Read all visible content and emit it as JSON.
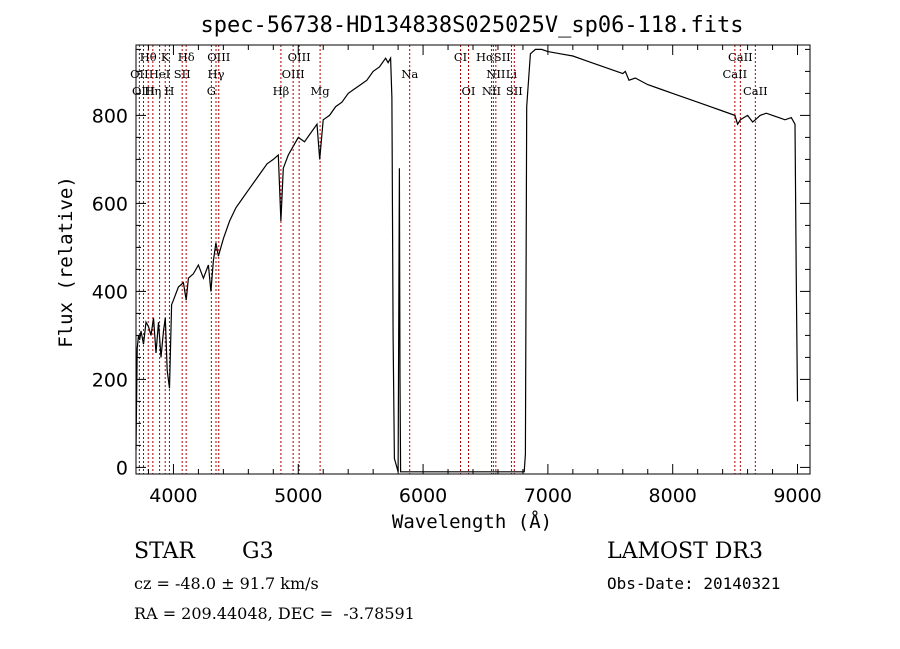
{
  "chart_data": {
    "type": "line",
    "title": "spec-56738-HD134838S025025V_sp06-118.fits",
    "xlabel": "Wavelength (Å)",
    "ylabel": "Flux (relative)",
    "xlim": [
      3700,
      9100
    ],
    "ylim": [
      -15,
      960
    ],
    "xticks": [
      4000,
      5000,
      6000,
      7000,
      8000,
      9000
    ],
    "yticks": [
      0,
      200,
      400,
      600,
      800
    ],
    "series": [
      {
        "x": [
          3700,
          3710,
          3720,
          3730,
          3740,
          3760,
          3780,
          3800,
          3820,
          3840,
          3860,
          3880,
          3900,
          3920,
          3935,
          3950,
          3968,
          3985,
          4000,
          4040,
          4080,
          4102,
          4120,
          4160,
          4200,
          4240,
          4280,
          4300,
          4320,
          4340,
          4360,
          4400,
          4450,
          4500,
          4550,
          4600,
          4650,
          4700,
          4750,
          4800,
          4840,
          4861,
          4880,
          4920,
          4960,
          5000,
          5050,
          5100,
          5150,
          5172,
          5200,
          5250,
          5300,
          5350,
          5400,
          5450,
          5500,
          5550,
          5600,
          5650,
          5700,
          5720,
          5740,
          5750,
          5760,
          5770,
          5790,
          5800,
          5810,
          5815,
          5820,
          5830,
          5840,
          5860,
          6000,
          6200,
          6400,
          6600,
          6700,
          6780,
          6800,
          6810,
          6820,
          6830,
          6860,
          6900,
          6950,
          7000,
          7100,
          7200,
          7300,
          7400,
          7500,
          7600,
          7620,
          7650,
          7700,
          7800,
          7900,
          8000,
          8100,
          8200,
          8300,
          8400,
          8498,
          8520,
          8542,
          8570,
          8600,
          8640,
          8662,
          8700,
          8750,
          8800,
          8850,
          8900,
          8950,
          8980,
          8990,
          9000
        ],
        "y": [
          40,
          270,
          300,
          290,
          310,
          280,
          330,
          320,
          300,
          340,
          260,
          330,
          250,
          310,
          340,
          220,
          180,
          370,
          380,
          410,
          420,
          380,
          430,
          440,
          460,
          430,
          460,
          400,
          470,
          510,
          480,
          520,
          560,
          590,
          610,
          630,
          650,
          670,
          690,
          700,
          710,
          560,
          680,
          710,
          730,
          750,
          740,
          760,
          780,
          700,
          790,
          800,
          820,
          830,
          850,
          860,
          870,
          880,
          900,
          910,
          930,
          920,
          930,
          840,
          300,
          20,
          0,
          -10,
          680,
          200,
          -10,
          -10,
          -10,
          -10,
          -10,
          -10,
          -10,
          -10,
          -10,
          -10,
          -10,
          -10,
          30,
          820,
          940,
          950,
          950,
          945,
          940,
          935,
          925,
          915,
          905,
          895,
          900,
          880,
          885,
          870,
          860,
          850,
          840,
          830,
          820,
          810,
          800,
          780,
          790,
          795,
          800,
          785,
          790,
          800,
          805,
          800,
          795,
          790,
          795,
          780,
          420,
          150
        ]
      }
    ],
    "lines_upper": [
      {
        "label": "Hθ",
        "x": 3798
      },
      {
        "label": "K",
        "x": 3934
      },
      {
        "label": "Hδ",
        "x": 4102
      },
      {
        "label": "OIII",
        "x": 4363
      },
      {
        "label": "OIII",
        "x": 5007
      },
      {
        "label": "CI",
        "x": 6300
      },
      {
        "label": "HαSII",
        "x": 6563
      },
      {
        "label": "CaII",
        "x": 8542
      }
    ],
    "lines_mid": [
      {
        "label": "OII",
        "x": 3727
      },
      {
        "label": "HeI",
        "x": 3889
      },
      {
        "label": "SII",
        "x": 4070
      },
      {
        "label": "Hγ",
        "x": 4341
      },
      {
        "label": "OIII",
        "x": 4959
      },
      {
        "label": "Na",
        "x": 5893
      },
      {
        "label": "NII",
        "x": 6583
      },
      {
        "label": "Li",
        "x": 6708
      },
      {
        "label": "CaII",
        "x": 8498
      }
    ],
    "lines_low": [
      {
        "label": "OIII",
        "x": 3760
      },
      {
        "label": "Hη",
        "x": 3835
      },
      {
        "label": "H",
        "x": 3968
      },
      {
        "label": "G",
        "x": 4304
      },
      {
        "label": "Hβ",
        "x": 4861
      },
      {
        "label": "Mg",
        "x": 5175
      },
      {
        "label": "OI",
        "x": 6364
      },
      {
        "label": "NII",
        "x": 6548
      },
      {
        "label": "SII",
        "x": 6731
      },
      {
        "label": "CaII",
        "x": 8662
      }
    ]
  },
  "info": {
    "object_class": "STAR",
    "subclass": "G3",
    "survey": "LAMOST DR3",
    "cz": "cz = -48.0 ± 91.7 km/s",
    "obs_date": "Obs-Date: 20140321",
    "radec": "RA = 209.44048, DEC =  -3.78591"
  }
}
